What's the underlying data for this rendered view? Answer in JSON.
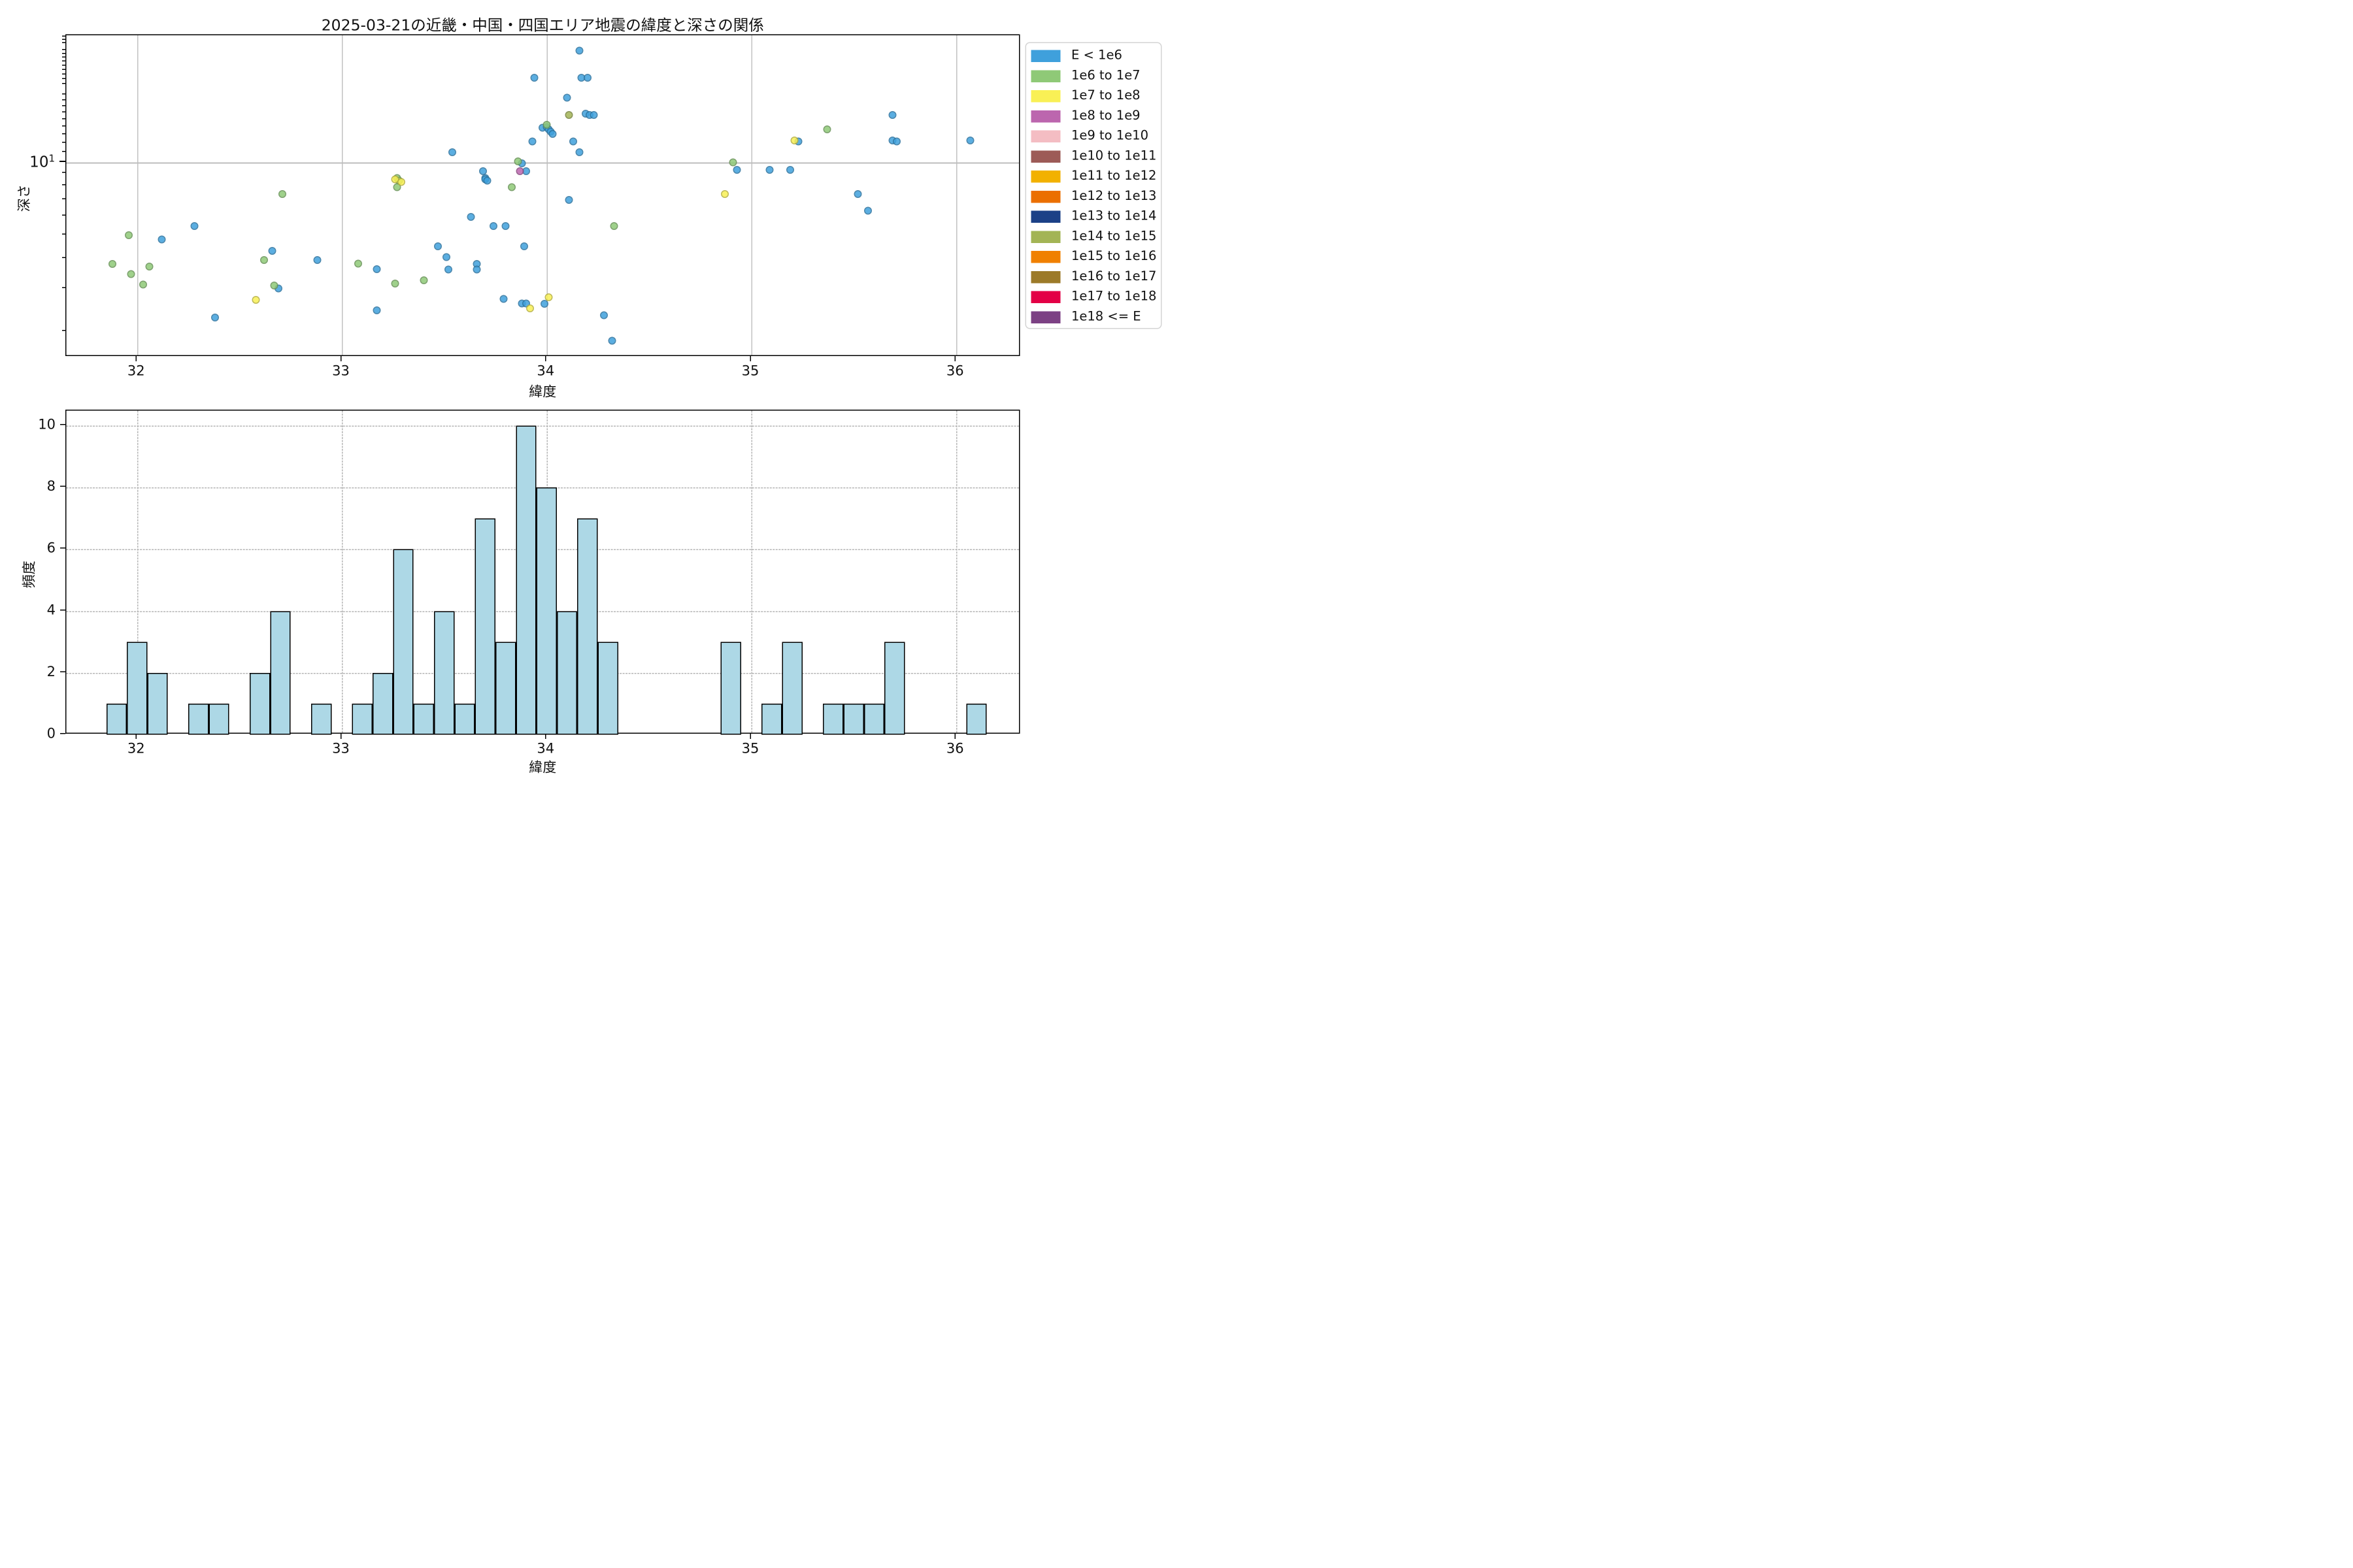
{
  "title": "2025-03-21の近畿・中国・四国エリア地震の緯度と深さの関係",
  "scatter_panel": {
    "xlabel": "緯度",
    "ylabel": "深さ",
    "xtick_labels": [
      "32",
      "33",
      "34",
      "35",
      "36"
    ],
    "ytick_major_base": "10",
    "ytick_major_exp": "1"
  },
  "hist_panel": {
    "xlabel": "緯度",
    "ylabel": "頻度",
    "xtick_labels": [
      "32",
      "33",
      "34",
      "35",
      "36"
    ],
    "ytick_labels": [
      "0",
      "2",
      "4",
      "6",
      "8",
      "10"
    ]
  },
  "legend": {
    "entries": [
      {
        "label": "E < 1e6",
        "color": "#3FA0DC"
      },
      {
        "label": "1e6 to 1e7",
        "color": "#8FC977"
      },
      {
        "label": "1e7 to 1e8",
        "color": "#F9F055"
      },
      {
        "label": "1e8 to 1e9",
        "color": "#BC66AE"
      },
      {
        "label": "1e9 to 1e10",
        "color": "#F4BDC3"
      },
      {
        "label": "1e10 to 1e11",
        "color": "#9D5B57"
      },
      {
        "label": "1e11 to 1e12",
        "color": "#F2B100"
      },
      {
        "label": "1e12 to 1e13",
        "color": "#EB6F00"
      },
      {
        "label": "1e13 to 1e14",
        "color": "#1C4187"
      },
      {
        "label": "1e14 to 1e15",
        "color": "#A3B455"
      },
      {
        "label": "1e15 to 1e16",
        "color": "#F08000"
      },
      {
        "label": "1e16 to 1e17",
        "color": "#9C7A29"
      },
      {
        "label": "1e17 to 1e18",
        "color": "#E30046"
      },
      {
        "label": "1e18 <= E",
        "color": "#7C4184"
      }
    ]
  },
  "chart_data": [
    {
      "type": "scatter",
      "title": "2025-03-21の近畿・中国・四国エリア地震の緯度と深さの関係",
      "xlabel": "緯度",
      "ylabel": "深さ",
      "x_range": [
        31.65,
        36.32
      ],
      "y_scale": "log",
      "y_range": [
        1.57,
        33.5
      ],
      "x_ticks": [
        32,
        33,
        34,
        35,
        36
      ],
      "y_major_ticks": [
        10
      ],
      "grid": "solid gray, x at integer latitudes, y at depth 10",
      "legend_position": "outside upper right",
      "series": [
        {
          "name": "E < 1e6",
          "color": "#3FA0DC",
          "points": [
            [
              32.12,
              4.8
            ],
            [
              32.28,
              5.45
            ],
            [
              32.38,
              2.28
            ],
            [
              32.66,
              4.3
            ],
            [
              32.69,
              3.01
            ],
            [
              32.88,
              3.94
            ],
            [
              33.17,
              3.62
            ],
            [
              33.17,
              2.44
            ],
            [
              33.47,
              4.5
            ],
            [
              33.51,
              4.05
            ],
            [
              33.52,
              3.6
            ],
            [
              33.54,
              11.0
            ],
            [
              33.63,
              5.95
            ],
            [
              33.66,
              3.8
            ],
            [
              33.66,
              3.6
            ],
            [
              33.69,
              9.2
            ],
            [
              33.7,
              8.6
            ],
            [
              33.7,
              8.5
            ],
            [
              33.71,
              8.4
            ],
            [
              33.74,
              5.45
            ],
            [
              33.79,
              2.72
            ],
            [
              33.8,
              5.45
            ],
            [
              33.88,
              9.9
            ],
            [
              33.88,
              2.61
            ],
            [
              33.89,
              4.5
            ],
            [
              33.9,
              9.2
            ],
            [
              33.9,
              2.61
            ],
            [
              33.93,
              12.2
            ],
            [
              33.94,
              22.4
            ],
            [
              33.98,
              13.9
            ],
            [
              33.99,
              2.6
            ],
            [
              34.0,
              14.0
            ],
            [
              34.01,
              13.7
            ],
            [
              34.02,
              13.4
            ],
            [
              34.03,
              13.1
            ],
            [
              34.1,
              18.5
            ],
            [
              34.11,
              7.0
            ],
            [
              34.13,
              12.2
            ],
            [
              34.16,
              29.0
            ],
            [
              34.16,
              11.0
            ],
            [
              34.17,
              22.4
            ],
            [
              34.19,
              15.9
            ],
            [
              34.2,
              22.4
            ],
            [
              34.21,
              15.7
            ],
            [
              34.23,
              15.7
            ],
            [
              34.28,
              2.33
            ],
            [
              34.32,
              1.83
            ],
            [
              34.93,
              9.3
            ],
            [
              35.09,
              9.3
            ],
            [
              35.19,
              9.3
            ],
            [
              35.23,
              12.2
            ],
            [
              35.52,
              7.4
            ],
            [
              35.57,
              6.3
            ],
            [
              35.69,
              15.7
            ],
            [
              35.69,
              12.3
            ],
            [
              35.71,
              12.2
            ],
            [
              36.07,
              12.3
            ]
          ]
        },
        {
          "name": "1e6 to 1e7",
          "color": "#8FC977",
          "points": [
            [
              31.88,
              3.8
            ],
            [
              31.96,
              5.0
            ],
            [
              31.97,
              3.45
            ],
            [
              32.03,
              3.12
            ],
            [
              32.06,
              3.71
            ],
            [
              32.62,
              3.94
            ],
            [
              32.67,
              3.09
            ],
            [
              32.71,
              7.4
            ],
            [
              33.08,
              3.81
            ],
            [
              33.26,
              3.15
            ],
            [
              33.27,
              8.6
            ],
            [
              33.27,
              7.9
            ],
            [
              33.28,
              8.4
            ],
            [
              33.4,
              3.25
            ],
            [
              33.83,
              7.9
            ],
            [
              33.86,
              10.1
            ],
            [
              34.0,
              14.3
            ],
            [
              34.33,
              5.45
            ],
            [
              34.91,
              10.0
            ],
            [
              35.37,
              13.7
            ]
          ]
        },
        {
          "name": "1e7 to 1e8",
          "color": "#F9F055",
          "points": [
            [
              32.58,
              2.7
            ],
            [
              33.26,
              8.5
            ],
            [
              33.29,
              8.3
            ],
            [
              33.92,
              2.49
            ],
            [
              34.01,
              2.77
            ],
            [
              34.87,
              7.4
            ],
            [
              35.21,
              12.3
            ]
          ]
        },
        {
          "name": "1e8 to 1e9",
          "color": "#BC66AE",
          "points": [
            [
              33.87,
              9.2
            ]
          ]
        },
        {
          "name": "1e14 to 1e15",
          "color": "#A3B455",
          "points": [
            [
              34.11,
              15.7
            ]
          ]
        }
      ]
    },
    {
      "type": "bar",
      "subtype": "histogram",
      "xlabel": "緯度",
      "ylabel": "頻度",
      "bin_width": 0.1,
      "bar_color": "#ADD8E6",
      "bar_edge_color": "#000000",
      "x_range": [
        31.65,
        36.32
      ],
      "ylim": [
        0,
        10.5
      ],
      "y_ticks": [
        0,
        2,
        4,
        6,
        8,
        10
      ],
      "grid": "dashed gray on both axes",
      "categories": [
        31.9,
        32.0,
        32.1,
        32.3,
        32.4,
        32.6,
        32.7,
        32.9,
        33.1,
        33.2,
        33.3,
        33.4,
        33.5,
        33.6,
        33.7,
        33.8,
        33.9,
        34.0,
        34.1,
        34.2,
        34.3,
        34.9,
        35.1,
        35.2,
        35.4,
        35.5,
        35.6,
        35.7,
        36.1
      ],
      "values": [
        1,
        3,
        2,
        1,
        1,
        2,
        4,
        1,
        1,
        2,
        6,
        1,
        4,
        1,
        7,
        3,
        10,
        8,
        4,
        7,
        3,
        3,
        1,
        3,
        1,
        1,
        1,
        3,
        1
      ]
    }
  ]
}
